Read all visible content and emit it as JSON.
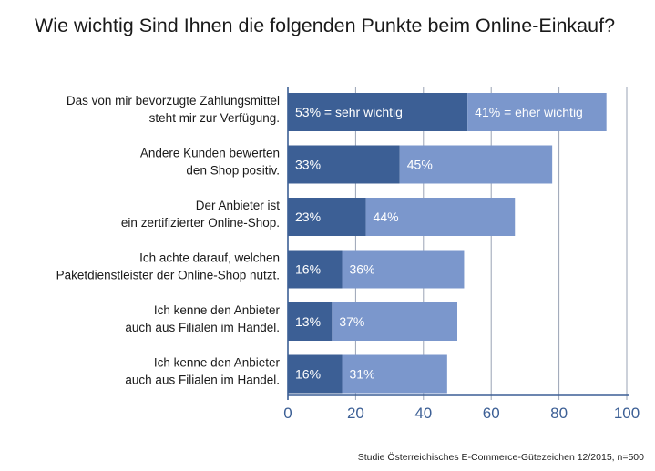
{
  "title": "Wie wichtig Sind Ihnen die folgenden Punkte beim Online-Einkauf?",
  "source": "Studie Österreichisches E-Commerce-Gütezeichen 12/2015, n=500",
  "colors": {
    "sehr_wichtig": "#3c5f95",
    "eher_wichtig": "#7b97cc",
    "axis": "#3c5f95",
    "grid": "#9aa3b5"
  },
  "chart_data": {
    "type": "bar",
    "orientation": "horizontal",
    "stacked": true,
    "categories": [
      [
        "Das von mir bevorzugte Zahlungsmittel",
        "steht mir zur Verfügung."
      ],
      [
        "Andere Kunden bewerten",
        "den Shop positiv."
      ],
      [
        "Der Anbieter ist",
        "ein zertifizierter Online-Shop."
      ],
      [
        "Ich achte darauf, welchen",
        "Paketdienstleister der Online-Shop nutzt."
      ],
      [
        "Ich kenne den Anbieter",
        "auch aus Filialen im Handel."
      ],
      [
        "Ich kenne den Anbieter",
        "auch aus Filialen im Handel."
      ]
    ],
    "series": [
      {
        "name": "sehr wichtig",
        "values": [
          53,
          33,
          23,
          16,
          13,
          16
        ],
        "labels": [
          "53% = sehr wichtig",
          "33%",
          "23%",
          "16%",
          "13%",
          "16%"
        ]
      },
      {
        "name": "eher wichtig",
        "values": [
          41,
          45,
          44,
          36,
          37,
          31
        ],
        "labels": [
          "41% = eher wichtig",
          "45%",
          "44%",
          "36%",
          "37%",
          "31%"
        ]
      }
    ],
    "xlim": [
      0,
      100
    ],
    "xticks": [
      "0",
      "20",
      "40",
      "60",
      "80",
      "100"
    ],
    "grid": true
  }
}
